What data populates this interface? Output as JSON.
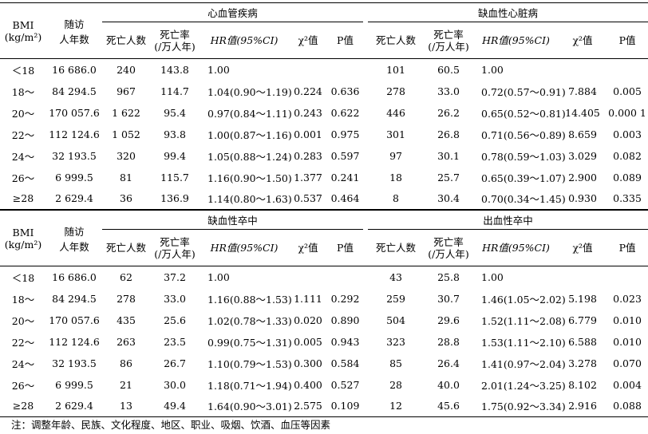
{
  "col_headers": {
    "bmi": "BMI",
    "bmi_unit": "(kg/m²)",
    "followup_1": "随访",
    "followup_2": "人年数",
    "deaths": "死亡人数",
    "rate_1": "死亡率",
    "rate_2": "(/万人年)",
    "hr": "HR值(95%CI)",
    "chi": "χ²值",
    "p": "P值"
  },
  "table1": {
    "group_left": "心血管疾病",
    "group_right": "缺血性心脏病",
    "rows": [
      {
        "bmi": "＜18",
        "py": "16 686.0",
        "d1": "240",
        "r1": "143.8",
        "hr1": "1.00",
        "c1": "",
        "p1": "",
        "d2": "101",
        "r2": "60.5",
        "hr2": "1.00",
        "c2": "",
        "p2": ""
      },
      {
        "bmi": "18～",
        "py": "84 294.5",
        "d1": "967",
        "r1": "114.7",
        "hr1": "1.04(0.90～1.19)",
        "c1": "0.224",
        "p1": "0.636",
        "d2": "278",
        "r2": "33.0",
        "hr2": "0.72(0.57～0.91)",
        "c2": "7.884",
        "p2": "0.005"
      },
      {
        "bmi": "20～",
        "py": "170 057.6",
        "d1": "1 622",
        "r1": "95.4",
        "hr1": "0.97(0.84～1.11)",
        "c1": "0.243",
        "p1": "0.622",
        "d2": "446",
        "r2": "26.2",
        "hr2": "0.65(0.52～0.81)",
        "c2": "14.405",
        "p2": "0.000 1"
      },
      {
        "bmi": "22～",
        "py": "112 124.6",
        "d1": "1 052",
        "r1": "93.8",
        "hr1": "1.00(0.87～1.16)",
        "c1": "0.001",
        "p1": "0.975",
        "d2": "301",
        "r2": "26.8",
        "hr2": "0.71(0.56～0.89)",
        "c2": "8.659",
        "p2": "0.003"
      },
      {
        "bmi": "24～",
        "py": "32 193.5",
        "d1": "320",
        "r1": "99.4",
        "hr1": "1.05(0.88～1.24)",
        "c1": "0.283",
        "p1": "0.597",
        "d2": "97",
        "r2": "30.1",
        "hr2": "0.78(0.59～1.03)",
        "c2": "3.029",
        "p2": "0.082"
      },
      {
        "bmi": "26～",
        "py": "6 999.5",
        "d1": "81",
        "r1": "115.7",
        "hr1": "1.16(0.90～1.50)",
        "c1": "1.377",
        "p1": "0.241",
        "d2": "18",
        "r2": "25.7",
        "hr2": "0.65(0.39～1.07)",
        "c2": "2.900",
        "p2": "0.089"
      },
      {
        "bmi": "≥28",
        "py": "2 629.4",
        "d1": "36",
        "r1": "136.9",
        "hr1": "1.14(0.80～1.63)",
        "c1": "0.537",
        "p1": "0.464",
        "d2": "8",
        "r2": "30.4",
        "hr2": "0.70(0.34～1.45)",
        "c2": "0.930",
        "p2": "0.335"
      }
    ]
  },
  "table2": {
    "group_left": "缺血性卒中",
    "group_right": "出血性卒中",
    "rows": [
      {
        "bmi": "＜18",
        "py": "16 686.0",
        "d1": "62",
        "r1": "37.2",
        "hr1": "1.00",
        "c1": "",
        "p1": "",
        "d2": "43",
        "r2": "25.8",
        "hr2": "1.00",
        "c2": "",
        "p2": ""
      },
      {
        "bmi": "18～",
        "py": "84 294.5",
        "d1": "278",
        "r1": "33.0",
        "hr1": "1.16(0.88～1.53)",
        "c1": "1.111",
        "p1": "0.292",
        "d2": "259",
        "r2": "30.7",
        "hr2": "1.46(1.05～2.02)",
        "c2": "5.198",
        "p2": "0.023"
      },
      {
        "bmi": "20～",
        "py": "170 057.6",
        "d1": "435",
        "r1": "25.6",
        "hr1": "1.02(0.78～1.33)",
        "c1": "0.020",
        "p1": "0.890",
        "d2": "504",
        "r2": "29.6",
        "hr2": "1.52(1.11～2.08)",
        "c2": "6.779",
        "p2": "0.010"
      },
      {
        "bmi": "22～",
        "py": "112 124.6",
        "d1": "263",
        "r1": "23.5",
        "hr1": "0.99(0.75～1.31)",
        "c1": "0.005",
        "p1": "0.943",
        "d2": "323",
        "r2": "28.8",
        "hr2": "1.53(1.11～2.10)",
        "c2": "6.588",
        "p2": "0.010"
      },
      {
        "bmi": "24～",
        "py": "32 193.5",
        "d1": "86",
        "r1": "26.7",
        "hr1": "1.10(0.79～1.53)",
        "c1": "0.300",
        "p1": "0.584",
        "d2": "85",
        "r2": "26.4",
        "hr2": "1.41(0.97～2.04)",
        "c2": "3.278",
        "p2": "0.070"
      },
      {
        "bmi": "26～",
        "py": "6 999.5",
        "d1": "21",
        "r1": "30.0",
        "hr1": "1.18(0.71～1.94)",
        "c1": "0.400",
        "p1": "0.527",
        "d2": "28",
        "r2": "40.0",
        "hr2": "2.01(1.24～3.25)",
        "c2": "8.102",
        "p2": "0.004"
      },
      {
        "bmi": "≥28",
        "py": "2 629.4",
        "d1": "13",
        "r1": "49.4",
        "hr1": "1.64(0.90～3.01)",
        "c1": "2.575",
        "p1": "0.109",
        "d2": "12",
        "r2": "45.6",
        "hr2": "1.75(0.92～3.34)",
        "c2": "2.916",
        "p2": "0.088"
      }
    ]
  },
  "note": "注：调整年龄、民族、文化程度、地区、职业、吸烟、饮酒、血压等因素"
}
